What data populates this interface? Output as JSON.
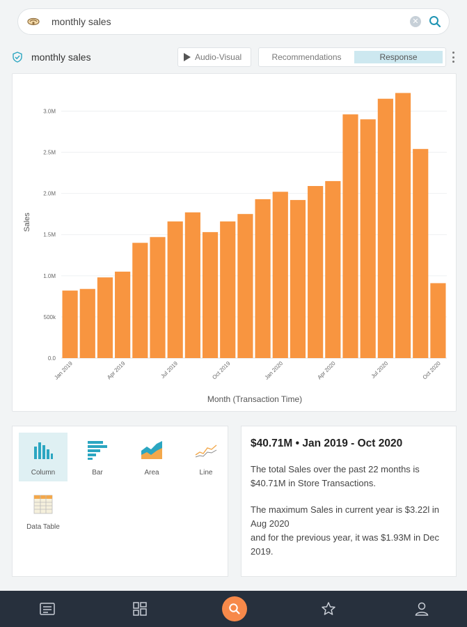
{
  "search": {
    "query": "monthly sales"
  },
  "toolbar": {
    "title": "monthly sales",
    "audio_visual_label": "Audio-Visual",
    "tabs": [
      {
        "label": "Recommendations"
      },
      {
        "label": "Response"
      }
    ],
    "active_tab": "Response"
  },
  "colors": {
    "bar": "#f89540",
    "accent": "#2ba6c1",
    "nav_bg": "#27303d",
    "nav_search": "#f7894a"
  },
  "chart_data": {
    "type": "bar",
    "title": "",
    "xlabel": "Month (Transaction Time)",
    "ylabel": "Sales",
    "ylim": [
      0,
      3300000
    ],
    "y_ticks": [
      {
        "value": 0,
        "label": "0.0"
      },
      {
        "value": 500000,
        "label": "500k"
      },
      {
        "value": 1000000,
        "label": "1.0M"
      },
      {
        "value": 1500000,
        "label": "1.5M"
      },
      {
        "value": 2000000,
        "label": "2.0M"
      },
      {
        "value": 2500000,
        "label": "2.5M"
      },
      {
        "value": 3000000,
        "label": "3.0M"
      }
    ],
    "x_tick_labels": [
      {
        "index": 0,
        "label": "Jan 2019"
      },
      {
        "index": 3,
        "label": "Apr 2019"
      },
      {
        "index": 6,
        "label": "Jul 2019"
      },
      {
        "index": 9,
        "label": "Oct 2019"
      },
      {
        "index": 12,
        "label": "Jan 2020"
      },
      {
        "index": 15,
        "label": "Apr 2020"
      },
      {
        "index": 18,
        "label": "Jul 2020"
      },
      {
        "index": 21,
        "label": "Oct 2020"
      }
    ],
    "categories": [
      "Jan 2019",
      "Feb 2019",
      "Mar 2019",
      "Apr 2019",
      "May 2019",
      "Jun 2019",
      "Jul 2019",
      "Aug 2019",
      "Sep 2019",
      "Oct 2019",
      "Nov 2019",
      "Dec 2019",
      "Jan 2020",
      "Feb 2020",
      "Mar 2020",
      "Apr 2020",
      "May 2020",
      "Jun 2020",
      "Jul 2020",
      "Aug 2020",
      "Sep 2020",
      "Oct 2020"
    ],
    "values": [
      820000,
      840000,
      980000,
      1050000,
      1400000,
      1470000,
      1660000,
      1770000,
      1530000,
      1660000,
      1750000,
      1930000,
      2020000,
      1920000,
      2090000,
      2150000,
      2960000,
      2900000,
      3150000,
      3220000,
      2540000,
      910000
    ]
  },
  "chart_types": [
    {
      "label": "Column",
      "icon": "column-chart-icon"
    },
    {
      "label": "Bar",
      "icon": "bar-chart-icon"
    },
    {
      "label": "Area",
      "icon": "area-chart-icon"
    },
    {
      "label": "Line",
      "icon": "line-chart-icon"
    },
    {
      "label": "Data Table",
      "icon": "data-table-icon"
    }
  ],
  "summary": {
    "headline": "$40.71M • Jan 2019 - Oct 2020",
    "para1": "The total Sales over the past 22 months is $40.71M in Store Transactions.",
    "para2a": "The maximum Sales in current year is $3.22l in Aug 2020",
    "para2b": "and for the previous year, it was $1.93M in Dec 2019."
  }
}
